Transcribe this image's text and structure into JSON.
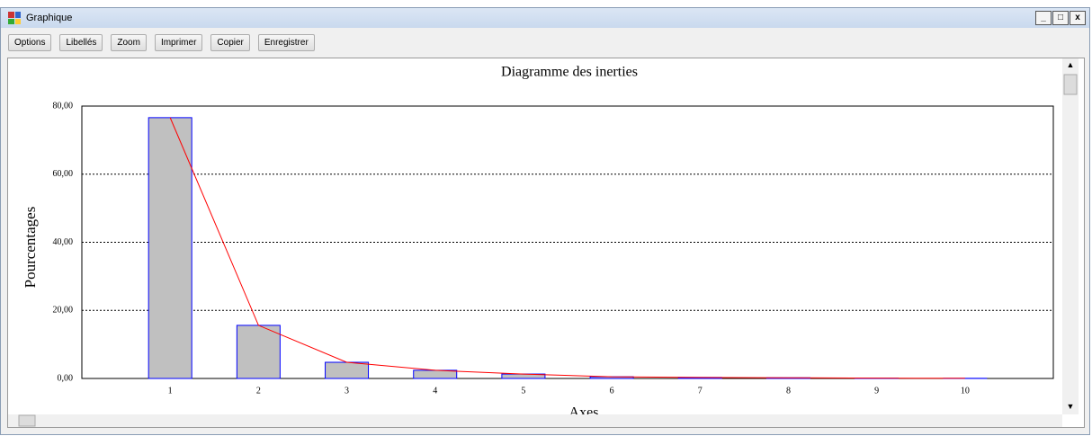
{
  "window_title": "Graphique",
  "toolbar": [
    "Options",
    "Libellés",
    "Zoom",
    "Imprimer",
    "Copier",
    "Enregistrer"
  ],
  "chart_data": {
    "type": "bar",
    "title": "Diagramme des inerties",
    "x_label": "Axes",
    "y_label": "Pourcentages",
    "categories": [
      "1",
      "2",
      "3",
      "4",
      "5",
      "6",
      "7",
      "8",
      "9",
      "10"
    ],
    "values": [
      76.6,
      15.6,
      4.75,
      2.4,
      1.3,
      0.5,
      0.3,
      0.2,
      0.1,
      0.05
    ],
    "color": "#c0c0c0",
    "edge_color": "#0000ff",
    "line_color": "#ff0000",
    "ylim": [
      0,
      80
    ],
    "yticks": [
      {
        "value": 0,
        "label": "0,00"
      },
      {
        "value": 20,
        "label": "20,00"
      },
      {
        "value": 40,
        "label": "40,00"
      },
      {
        "value": 60,
        "label": "60,00"
      },
      {
        "value": 80,
        "label": "80,00"
      }
    ],
    "grid": true
  }
}
